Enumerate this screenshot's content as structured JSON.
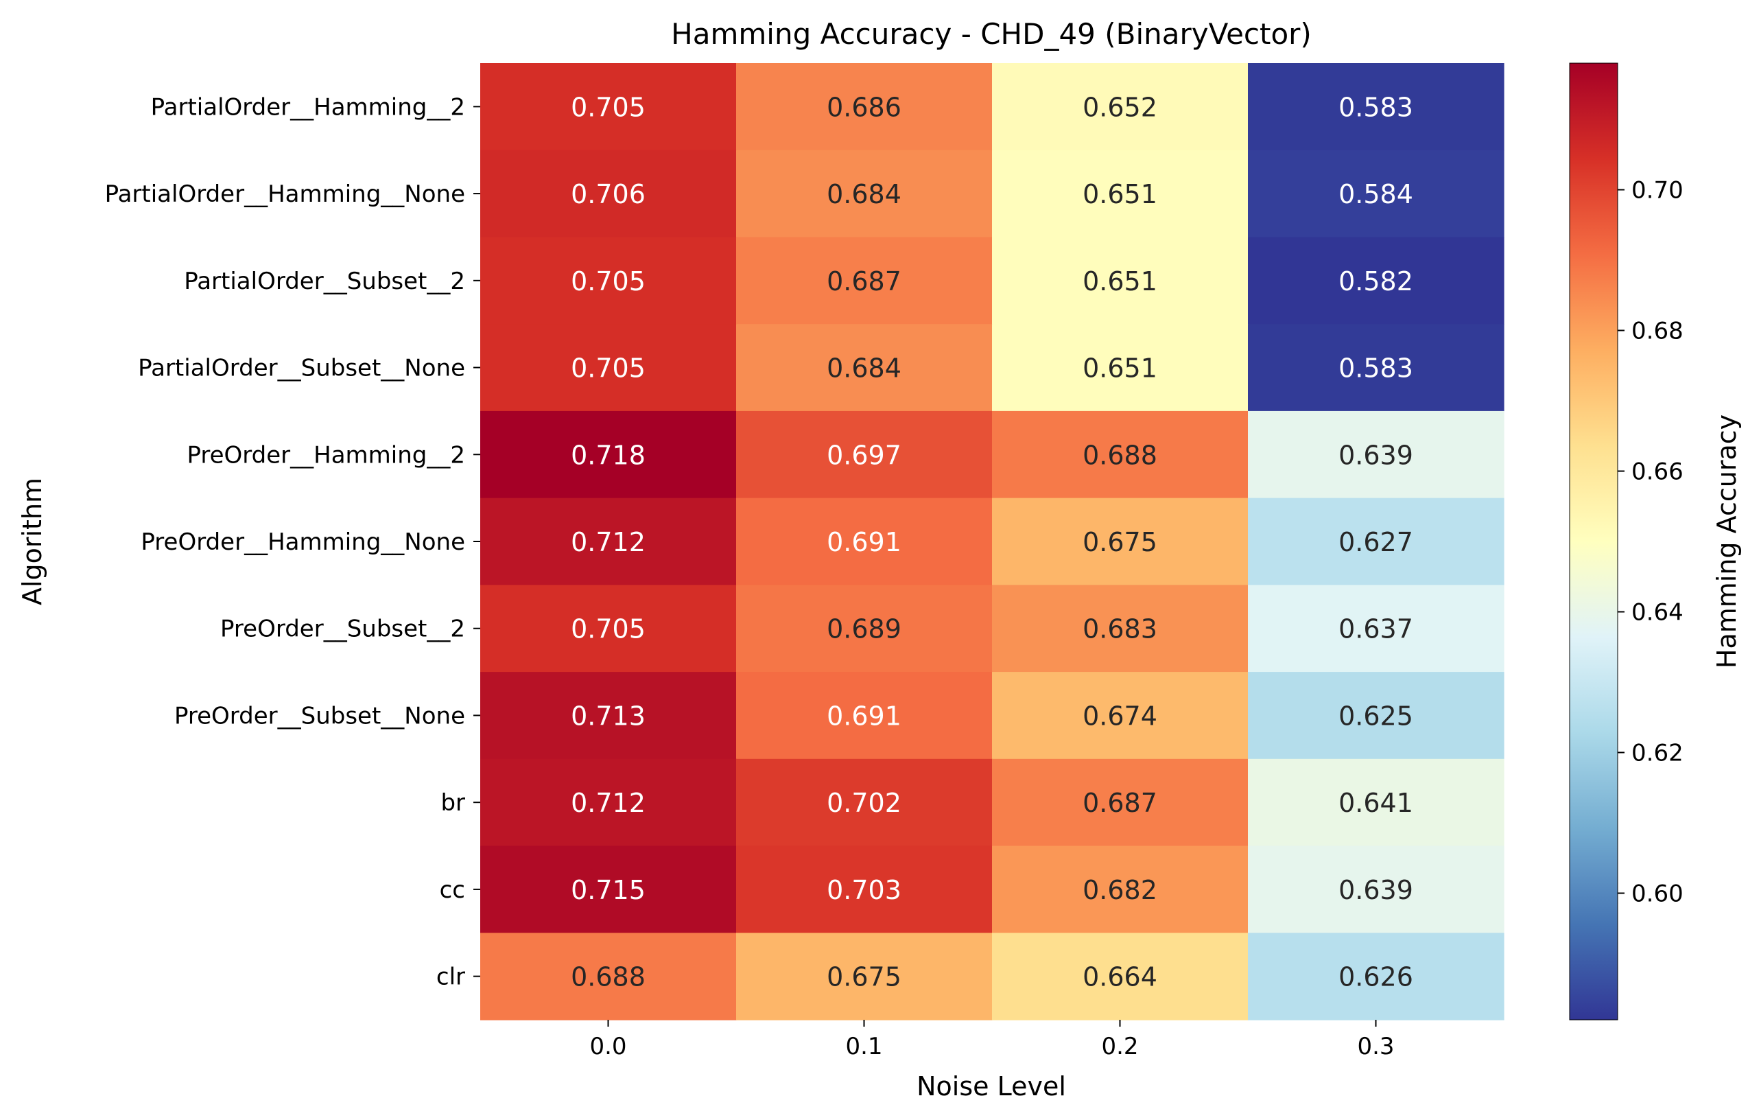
{
  "chart_data": {
    "type": "heatmap",
    "title": "Hamming Accuracy - CHD_49 (BinaryVector)",
    "xlabel": "Noise Level",
    "ylabel": "Algorithm",
    "x_categories": [
      "0.0",
      "0.1",
      "0.2",
      "0.3"
    ],
    "y_categories": [
      "PartialOrder__Hamming__2",
      "PartialOrder__Hamming__None",
      "PartialOrder__Subset__2",
      "PartialOrder__Subset__None",
      "PreOrder__Hamming__2",
      "PreOrder__Hamming__None",
      "PreOrder__Subset__2",
      "PreOrder__Subset__None",
      "br",
      "cc",
      "clr"
    ],
    "values": [
      [
        0.705,
        0.686,
        0.652,
        0.583
      ],
      [
        0.706,
        0.684,
        0.651,
        0.584
      ],
      [
        0.705,
        0.687,
        0.651,
        0.582
      ],
      [
        0.705,
        0.684,
        0.651,
        0.583
      ],
      [
        0.718,
        0.697,
        0.688,
        0.639
      ],
      [
        0.712,
        0.691,
        0.675,
        0.627
      ],
      [
        0.705,
        0.689,
        0.683,
        0.637
      ],
      [
        0.713,
        0.691,
        0.674,
        0.625
      ],
      [
        0.712,
        0.702,
        0.687,
        0.641
      ],
      [
        0.715,
        0.703,
        0.682,
        0.639
      ],
      [
        0.688,
        0.675,
        0.664,
        0.626
      ]
    ],
    "colormap": "RdYlBu_r",
    "color_range": [
      0.582,
      0.718
    ],
    "colorbar": {
      "label": "Hamming Accuracy",
      "ticks": [
        "0.60",
        "0.62",
        "0.64",
        "0.66",
        "0.68",
        "0.70"
      ]
    },
    "annotations": true,
    "grid": false
  }
}
